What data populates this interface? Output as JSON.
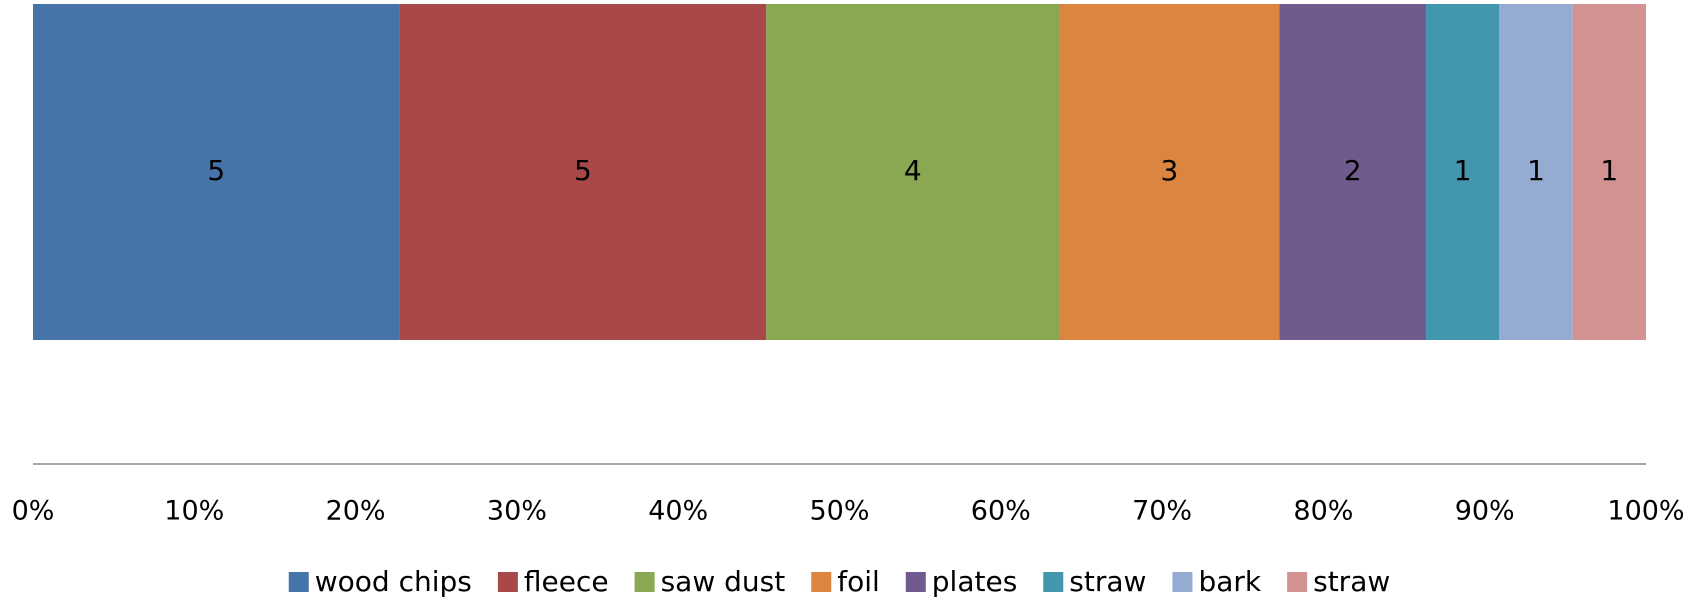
{
  "chart_data": {
    "type": "bar",
    "orientation": "horizontal",
    "stacking": "percent",
    "categories": [
      null
    ],
    "series": [
      {
        "name": "wood chips",
        "color": "#4674a8",
        "values": [
          5
        ]
      },
      {
        "name": "fleece",
        "color": "#a94848",
        "values": [
          5
        ]
      },
      {
        "name": "saw dust",
        "color": "#8aa752",
        "values": [
          4
        ]
      },
      {
        "name": "foil",
        "color": "#db8540",
        "values": [
          3
        ]
      },
      {
        "name": "plates",
        "color": "#715a8e",
        "values": [
          2
        ]
      },
      {
        "name": "straw",
        "color": "#4297ad",
        "values": [
          1
        ]
      },
      {
        "name": "bark",
        "color": "#95abd2",
        "values": [
          1
        ]
      },
      {
        "name": "straw",
        "color": "#d39292",
        "values": [
          1
        ]
      }
    ],
    "xlim": [
      0,
      100
    ],
    "xticks": [
      {
        "value": 0,
        "label": "0%"
      },
      {
        "value": 10,
        "label": "10%"
      },
      {
        "value": 20,
        "label": "20%"
      },
      {
        "value": 30,
        "label": "30%"
      },
      {
        "value": 40,
        "label": "40%"
      },
      {
        "value": 50,
        "label": "50%"
      },
      {
        "value": 60,
        "label": "60%"
      },
      {
        "value": 70,
        "label": "70%"
      },
      {
        "value": 80,
        "label": "80%"
      },
      {
        "value": 90,
        "label": "90%"
      },
      {
        "value": 100,
        "label": "100%"
      }
    ],
    "grid": false,
    "legend": "bottom"
  }
}
